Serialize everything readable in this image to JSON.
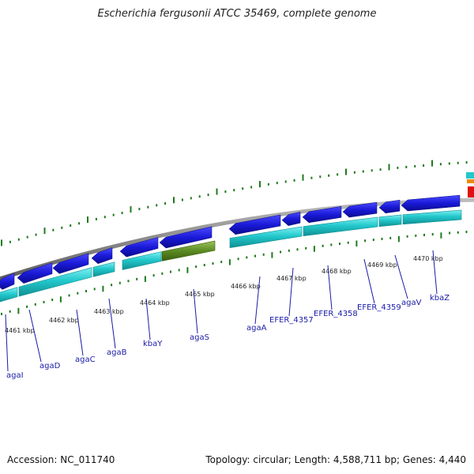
{
  "title": "Escherichia fergusonii ATCC 35469, complete genome",
  "footer": {
    "accession": "Accession: NC_011740",
    "summary": "Topology: circular; Length: 4,588,711 bp; Genes: 4,440"
  },
  "tick_labels": [
    "4461 kbp",
    "4462 kbp",
    "4463 kbp",
    "4464 kbp",
    "4465 kbp",
    "4466 kbp",
    "4467 kbp",
    "4468 kbp",
    "4469 kbp",
    "4470 kbp"
  ],
  "gene_labels": [
    "agaI",
    "agaD",
    "agaC",
    "agaB",
    "kbaY",
    "agaS",
    "agaA",
    "EFER_4357",
    "EFER_4358",
    "EFER_4359",
    "agaV",
    "kbaZ"
  ],
  "colors": {
    "cds": "#1a1ad8",
    "gene": "#22c8cc",
    "gene_dark": "#0f8f92",
    "pseudo": "#5a8a22",
    "backbone": "#8a8a8a",
    "tick": "#1e7a1e",
    "label": "#1a1aa8"
  }
}
